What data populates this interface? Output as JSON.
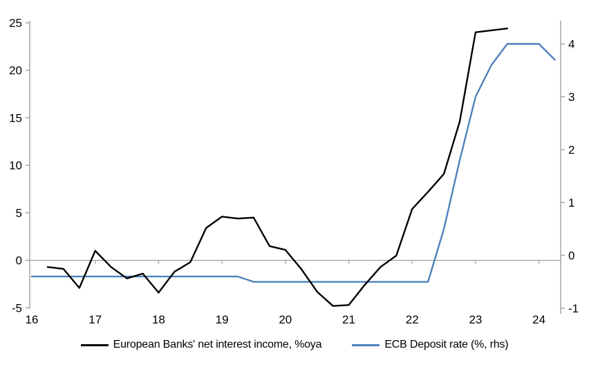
{
  "chart_data": {
    "type": "line",
    "title": "",
    "x_axis": {
      "tick_labels": [
        "16",
        "17",
        "18",
        "19",
        "20",
        "21",
        "22",
        "23",
        "24"
      ],
      "tick_values": [
        16,
        17,
        18,
        19,
        20,
        21,
        22,
        23,
        24
      ],
      "range": [
        16,
        24.35
      ]
    },
    "y_axis_left": {
      "tick_labels": [
        "25",
        "20",
        "15",
        "10",
        "5",
        "0",
        "-5"
      ],
      "tick_values": [
        25,
        20,
        15,
        10,
        5,
        0,
        -5
      ],
      "range": [
        -5,
        25.3
      ]
    },
    "y_axis_right": {
      "tick_labels": [
        "4",
        "3",
        "2",
        "1",
        "0",
        "-1"
      ],
      "tick_values": [
        4,
        3,
        2,
        1,
        0,
        -1
      ],
      "range": [
        -1,
        4.45
      ]
    },
    "grid": "zero-line-only",
    "legend_position": "bottom-center",
    "colors": {
      "axis": "#A6A6A6",
      "zero_line": "#A6A6A6",
      "nii_line": "#000000",
      "deposit_line": "#4F81BD"
    },
    "series": [
      {
        "name": "European Banks' net interest income, %oya",
        "axis": "left",
        "color": "#000000",
        "points": [
          [
            16.25,
            -0.7
          ],
          [
            16.5,
            -0.9
          ],
          [
            16.75,
            -2.9
          ],
          [
            17.0,
            1.0
          ],
          [
            17.25,
            -0.7
          ],
          [
            17.5,
            -1.9
          ],
          [
            17.75,
            -1.4
          ],
          [
            18.0,
            -3.4
          ],
          [
            18.25,
            -1.2
          ],
          [
            18.5,
            -0.2
          ],
          [
            18.75,
            3.4
          ],
          [
            19.0,
            4.6
          ],
          [
            19.25,
            4.4
          ],
          [
            19.5,
            4.5
          ],
          [
            19.75,
            1.5
          ],
          [
            20.0,
            1.1
          ],
          [
            20.25,
            -0.9
          ],
          [
            20.5,
            -3.3
          ],
          [
            20.75,
            -4.8
          ],
          [
            21.0,
            -4.7
          ],
          [
            21.25,
            -2.6
          ],
          [
            21.5,
            -0.7
          ],
          [
            21.75,
            0.5
          ],
          [
            22.0,
            5.4
          ],
          [
            22.25,
            7.2
          ],
          [
            22.5,
            9.1
          ],
          [
            22.75,
            14.6
          ],
          [
            23.0,
            24.0
          ],
          [
            23.25,
            24.2
          ],
          [
            23.5,
            24.4
          ]
        ]
      },
      {
        "name": "ECB Deposit rate (%, rhs)",
        "axis": "right",
        "color": "#4F81BD",
        "points": [
          [
            16.0,
            -0.4
          ],
          [
            16.25,
            -0.4
          ],
          [
            16.5,
            -0.4
          ],
          [
            16.75,
            -0.4
          ],
          [
            17.0,
            -0.4
          ],
          [
            17.25,
            -0.4
          ],
          [
            17.5,
            -0.4
          ],
          [
            17.75,
            -0.4
          ],
          [
            18.0,
            -0.4
          ],
          [
            18.25,
            -0.4
          ],
          [
            18.5,
            -0.4
          ],
          [
            18.75,
            -0.4
          ],
          [
            19.0,
            -0.4
          ],
          [
            19.25,
            -0.4
          ],
          [
            19.5,
            -0.5
          ],
          [
            19.75,
            -0.5
          ],
          [
            20.0,
            -0.5
          ],
          [
            20.25,
            -0.5
          ],
          [
            20.5,
            -0.5
          ],
          [
            20.75,
            -0.5
          ],
          [
            21.0,
            -0.5
          ],
          [
            21.25,
            -0.5
          ],
          [
            21.5,
            -0.5
          ],
          [
            21.75,
            -0.5
          ],
          [
            22.0,
            -0.5
          ],
          [
            22.25,
            -0.5
          ],
          [
            22.5,
            0.5
          ],
          [
            22.75,
            1.8
          ],
          [
            23.0,
            3.0
          ],
          [
            23.25,
            3.6
          ],
          [
            23.5,
            4.0
          ],
          [
            23.75,
            4.0
          ],
          [
            24.0,
            4.0
          ],
          [
            24.25,
            3.7
          ]
        ]
      }
    ]
  }
}
